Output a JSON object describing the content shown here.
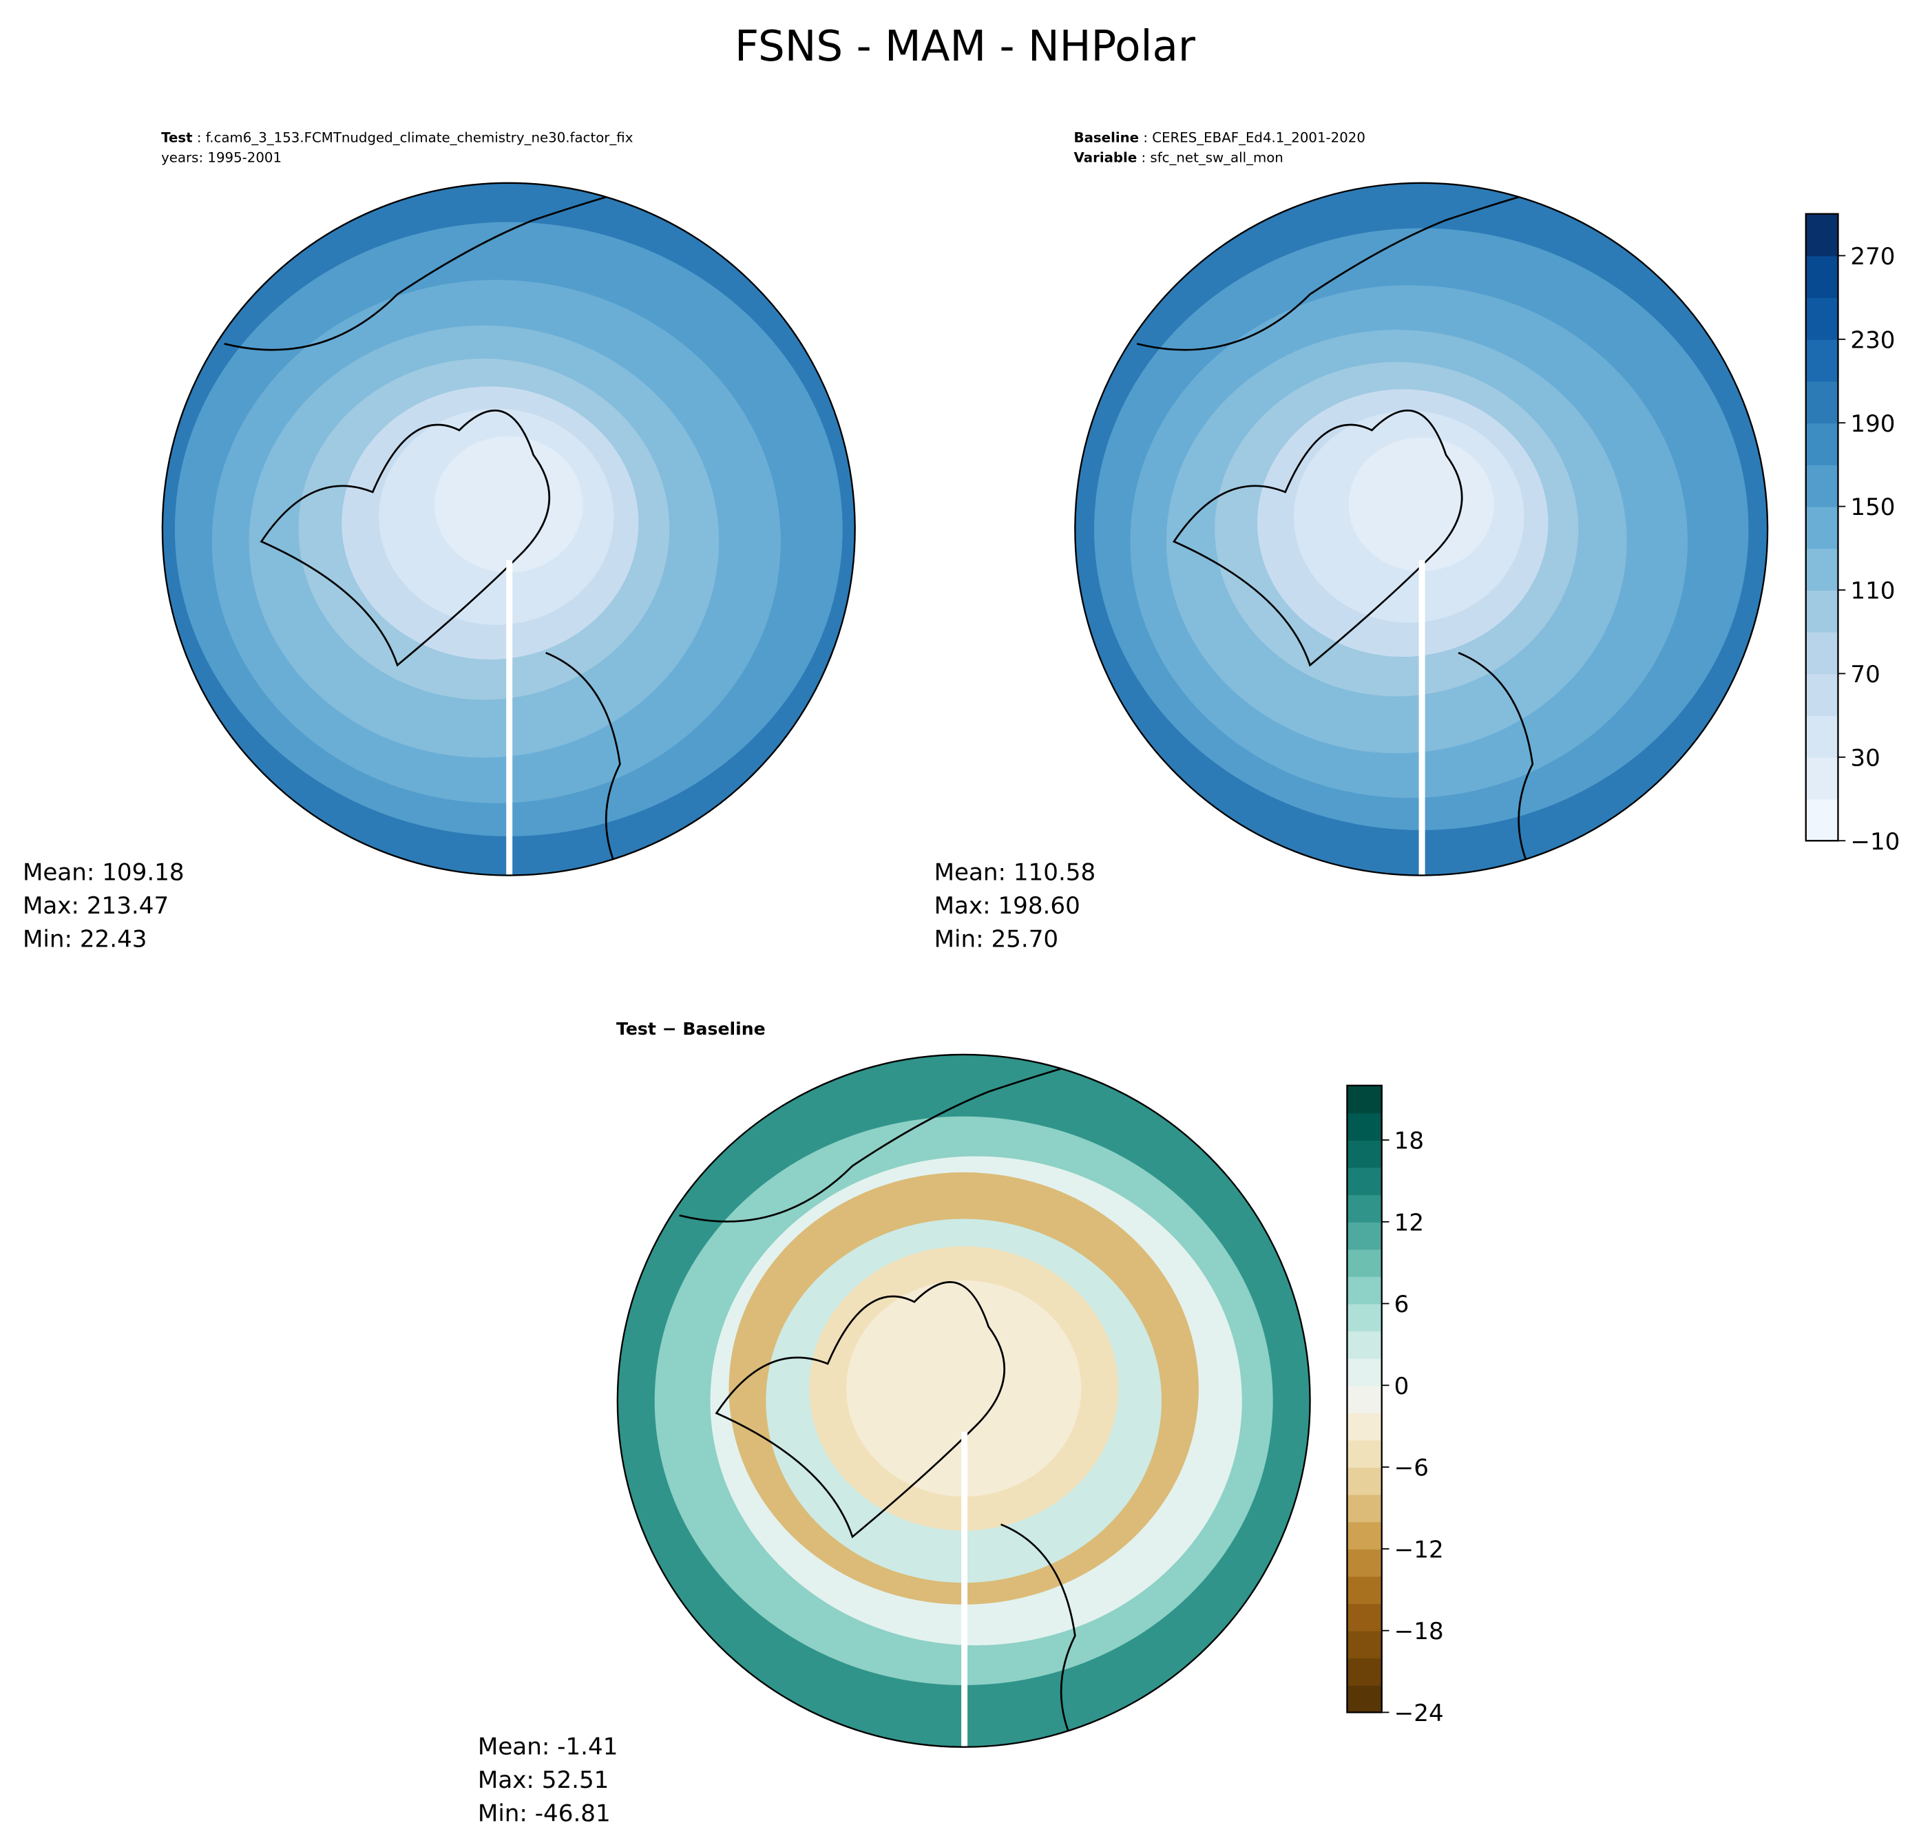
{
  "chart_data": [
    {
      "type": "heatmap",
      "title": "FSNS - MAM - NHPolar",
      "panels": [
        {
          "label_bold": "Test",
          "label_text": "f.cam6_3_153.FCMTnudged_climate_chemistry_ne30.factor_fix",
          "line2": "years: 1995-2001",
          "stats": [
            "Mean: 109.18",
            "Max: 213.47",
            "Min: 22.43"
          ],
          "projection": "north polar stereographic"
        },
        {
          "label_bold": "Baseline",
          "label_text": "CERES_EBAF_Ed4.1_2001-2020",
          "line2_bold": "Variable",
          "line2_text": "sfc_net_sw_all_mon",
          "stats": [
            "Mean: 110.58",
            "Max: 198.60",
            "Min: 25.70"
          ],
          "projection": "north polar stereographic"
        },
        {
          "label_bold": "Test − Baseline",
          "stats": [
            "Mean: -1.41",
            "Max: 52.51",
            "Min: -46.81"
          ],
          "projection": "north polar stereographic"
        }
      ],
      "colorbars": [
        {
          "colormap": "Blues",
          "range": [
            -10,
            290
          ],
          "step": 20,
          "ticks": [
            "270",
            "230",
            "190",
            "150",
            "110",
            "70",
            "30",
            "−10"
          ],
          "tick_values": [
            270,
            230,
            190,
            150,
            110,
            70,
            30,
            -10
          ]
        },
        {
          "colormap": "BrBG",
          "range": [
            -24,
            22
          ],
          "step": 2,
          "ticks": [
            "18",
            "12",
            "6",
            "0",
            "−6",
            "−12",
            "−18",
            "−24"
          ],
          "tick_values": [
            18,
            12,
            6,
            0,
            -6,
            -12,
            -18,
            -24
          ]
        }
      ]
    }
  ]
}
